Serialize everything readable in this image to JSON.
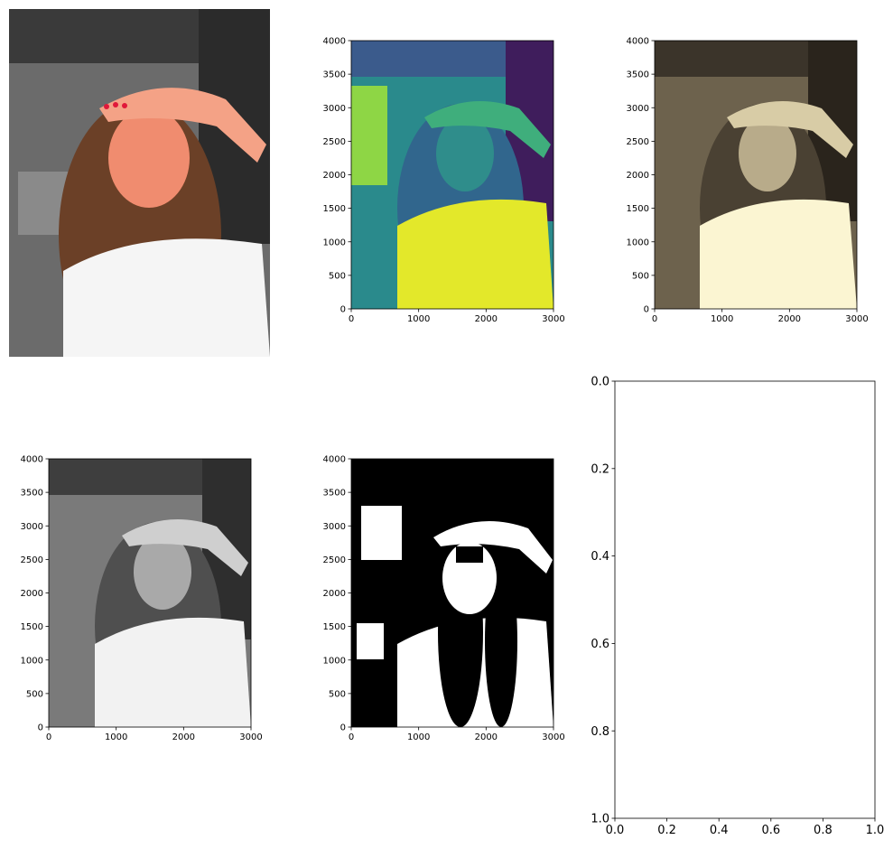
{
  "figure": {
    "layout": "2x3 grid of matplotlib subplots",
    "subject": "selfie of a young woman shading her eyes with her hand"
  },
  "chart_data": [
    {
      "id": "panel-original",
      "type": "image",
      "colormap": "original color (red nails, pink skin on grey background)",
      "axes_visible": false,
      "image_size": [
        3000,
        4000
      ]
    },
    {
      "id": "panel-viridis",
      "type": "image",
      "colormap": "viridis",
      "axes_visible": true,
      "xlim": [
        0,
        3000
      ],
      "ylim": [
        4000,
        0
      ],
      "xticks": [
        0,
        1000,
        2000,
        3000
      ],
      "yticks": [
        0,
        500,
        1000,
        1500,
        2000,
        2500,
        3000,
        3500,
        4000
      ]
    },
    {
      "id": "panel-sepia",
      "type": "image",
      "colormap": "pink/copper-like (sepia)",
      "axes_visible": true,
      "xlim": [
        0,
        3000
      ],
      "ylim": [
        4000,
        0
      ],
      "xticks": [
        0,
        1000,
        2000,
        3000
      ],
      "yticks": [
        0,
        500,
        1000,
        1500,
        2000,
        2500,
        3000,
        3500,
        4000
      ]
    },
    {
      "id": "panel-gray",
      "type": "image",
      "colormap": "gray",
      "axes_visible": true,
      "xlim": [
        0,
        3000
      ],
      "ylim": [
        4000,
        0
      ],
      "xticks": [
        0,
        1000,
        2000,
        3000
      ],
      "yticks": [
        0,
        500,
        1000,
        1500,
        2000,
        2500,
        3000,
        3500,
        4000
      ]
    },
    {
      "id": "panel-binary",
      "type": "image",
      "colormap": "binary threshold (black/white)",
      "axes_visible": true,
      "xlim": [
        0,
        3000
      ],
      "ylim": [
        4000,
        0
      ],
      "xticks": [
        0,
        1000,
        2000,
        3000
      ],
      "yticks": [
        0,
        500,
        1000,
        1500,
        2000,
        2500,
        3000,
        3500,
        4000
      ]
    },
    {
      "id": "panel-empty",
      "type": "empty",
      "axes_visible": true,
      "xlim": [
        0,
        1
      ],
      "ylim": [
        0,
        1
      ],
      "xticks": [
        0.0,
        0.2,
        0.4,
        0.6,
        0.8,
        1.0
      ],
      "yticks": [
        0.0,
        0.2,
        0.4,
        0.6,
        0.8,
        1.0
      ]
    }
  ],
  "tick_labels": {
    "img_x": [
      "0",
      "1000",
      "2000",
      "3000"
    ],
    "img_y": [
      "0",
      "500",
      "1000",
      "1500",
      "2000",
      "2500",
      "3000",
      "3500",
      "4000"
    ],
    "unit": [
      "0.0",
      "0.2",
      "0.4",
      "0.6",
      "0.8",
      "1.0"
    ]
  },
  "colors": {
    "viridis_bg": "#2a8a8c",
    "viridis_shirt": "#e3e82a",
    "viridis_dark": "#3f1d5c",
    "sepia_bg": "#4a4133",
    "sepia_light": "#fbf5d2",
    "gray_bg": "#5a5a5a",
    "gray_light": "#f2f2f2",
    "skin": "#f08c6f",
    "hair": "#6b4027",
    "nails": "#e0183a",
    "background_gray": "#6b6b6b"
  }
}
